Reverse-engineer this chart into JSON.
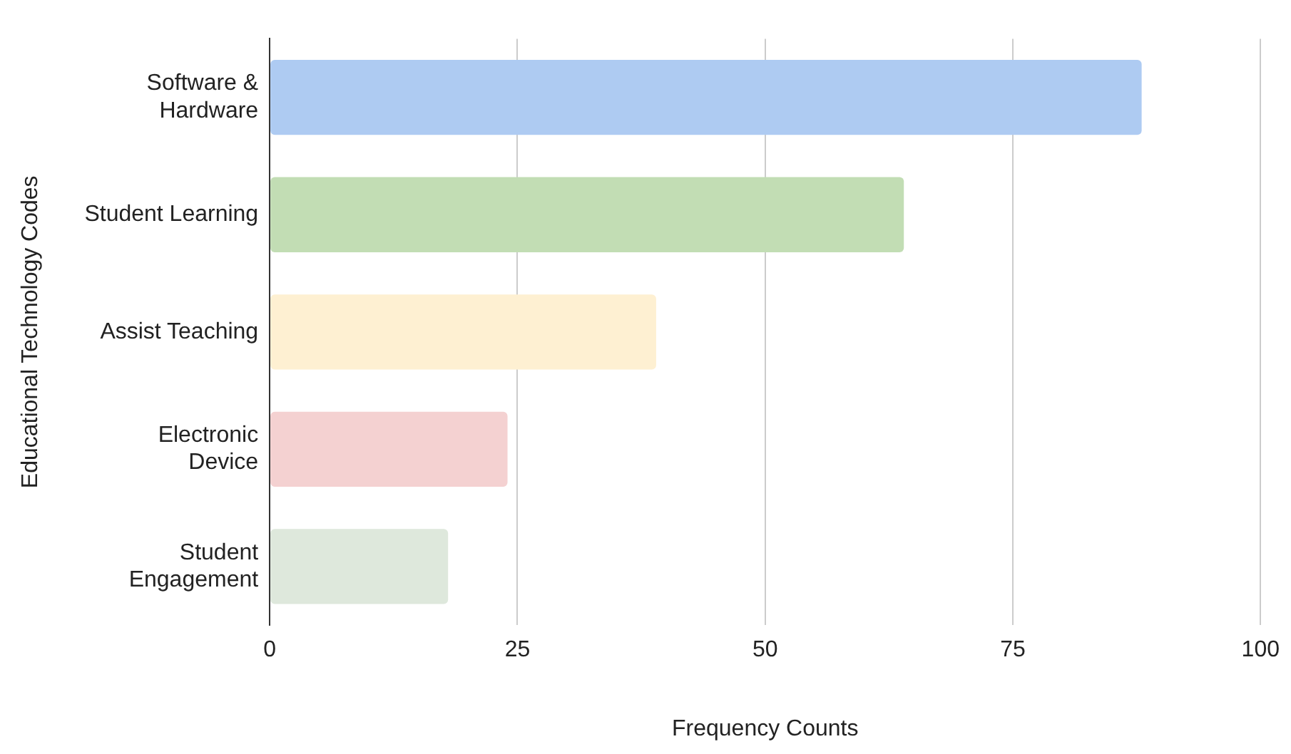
{
  "chart_data": {
    "type": "bar",
    "orientation": "horizontal",
    "xlabel": "Frequency Counts",
    "ylabel": "Educational Technology Codes",
    "categories": [
      "Software & Hardware",
      "Student Learning",
      "Assist Teaching",
      "Electronic Device",
      "Student Engagement"
    ],
    "values": [
      88,
      64,
      39,
      24,
      18
    ],
    "colors": [
      "#aecbf2",
      "#c2ddb4",
      "#fef0d2",
      "#f4d1d1",
      "#dee8dc"
    ],
    "xlim": [
      0,
      100
    ],
    "xticks": [
      0,
      25,
      50,
      75,
      100
    ],
    "grid": "x",
    "legend": false
  }
}
